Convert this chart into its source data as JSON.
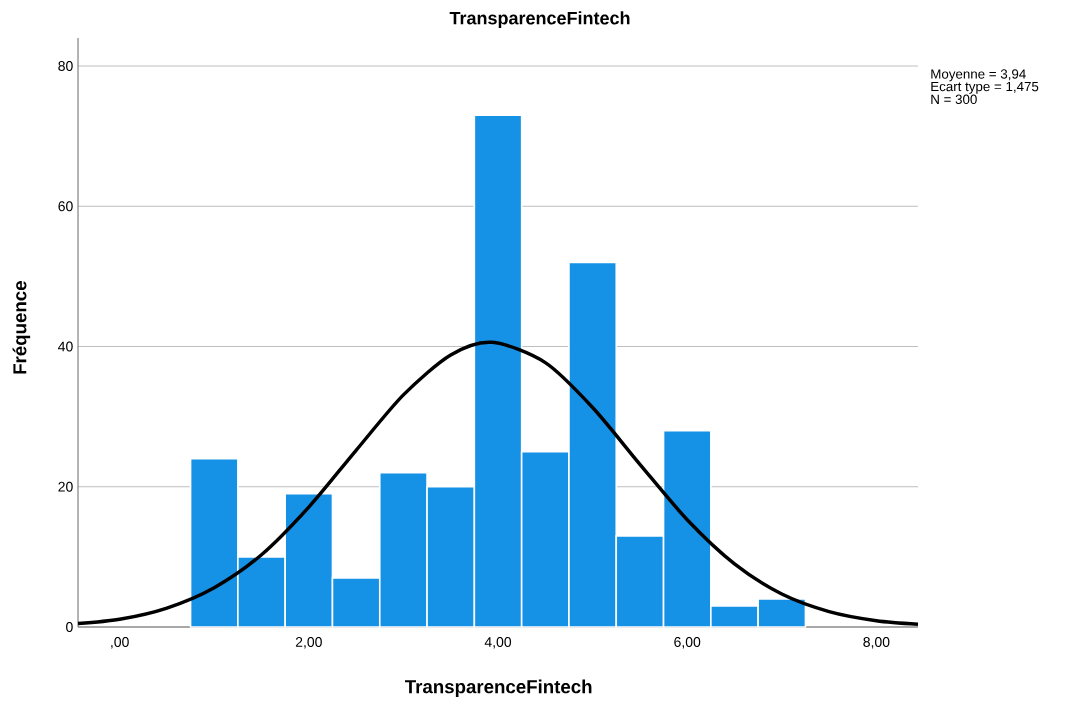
{
  "chart_data": {
    "type": "histogram",
    "title": "TransparenceFintech",
    "xlabel": "TransparenceFintech",
    "ylabel": "Fréquence",
    "annotations": [
      "Moyenne = 3,94",
      "Ecart type = 1,475",
      "N = 300"
    ],
    "bins": [
      0.75,
      1.25,
      1.75,
      2.25,
      2.75,
      3.25,
      3.75,
      4.25,
      4.75,
      5.25,
      5.75,
      6.25,
      6.75,
      7.25
    ],
    "values": [
      24,
      10,
      19,
      7,
      22,
      20,
      73,
      25,
      52,
      13,
      28,
      3,
      4
    ],
    "color": "#1591e6",
    "series": [
      {
        "type": "line",
        "color": "#000000",
        "x": [
          -0.44,
          0,
          0.5,
          1,
          1.5,
          2,
          2.5,
          3,
          3.5,
          3.94,
          4.5,
          5,
          5.5,
          6,
          6.5,
          7,
          7.5,
          8,
          8.44
        ],
        "values": [
          0.5,
          1.1,
          2.7,
          5.6,
          10.3,
          17.1,
          25.2,
          33.1,
          38.8,
          40.6,
          37.7,
          31.3,
          23.2,
          15.3,
          9.0,
          4.7,
          2.2,
          0.9,
          0.4
        ]
      }
    ],
    "xlim": [
      -0.44,
      8.44
    ],
    "ylim": [
      0,
      84
    ],
    "xticks": [
      {
        "value": 0,
        "label": ",00"
      },
      {
        "value": 2,
        "label": "2,00"
      },
      {
        "value": 4,
        "label": "4,00"
      },
      {
        "value": 6,
        "label": "6,00"
      },
      {
        "value": 8,
        "label": "8,00"
      }
    ],
    "yticks": [
      0,
      20,
      40,
      60,
      80
    ],
    "grid": "y",
    "marker": "none",
    "line_style": "solid"
  }
}
